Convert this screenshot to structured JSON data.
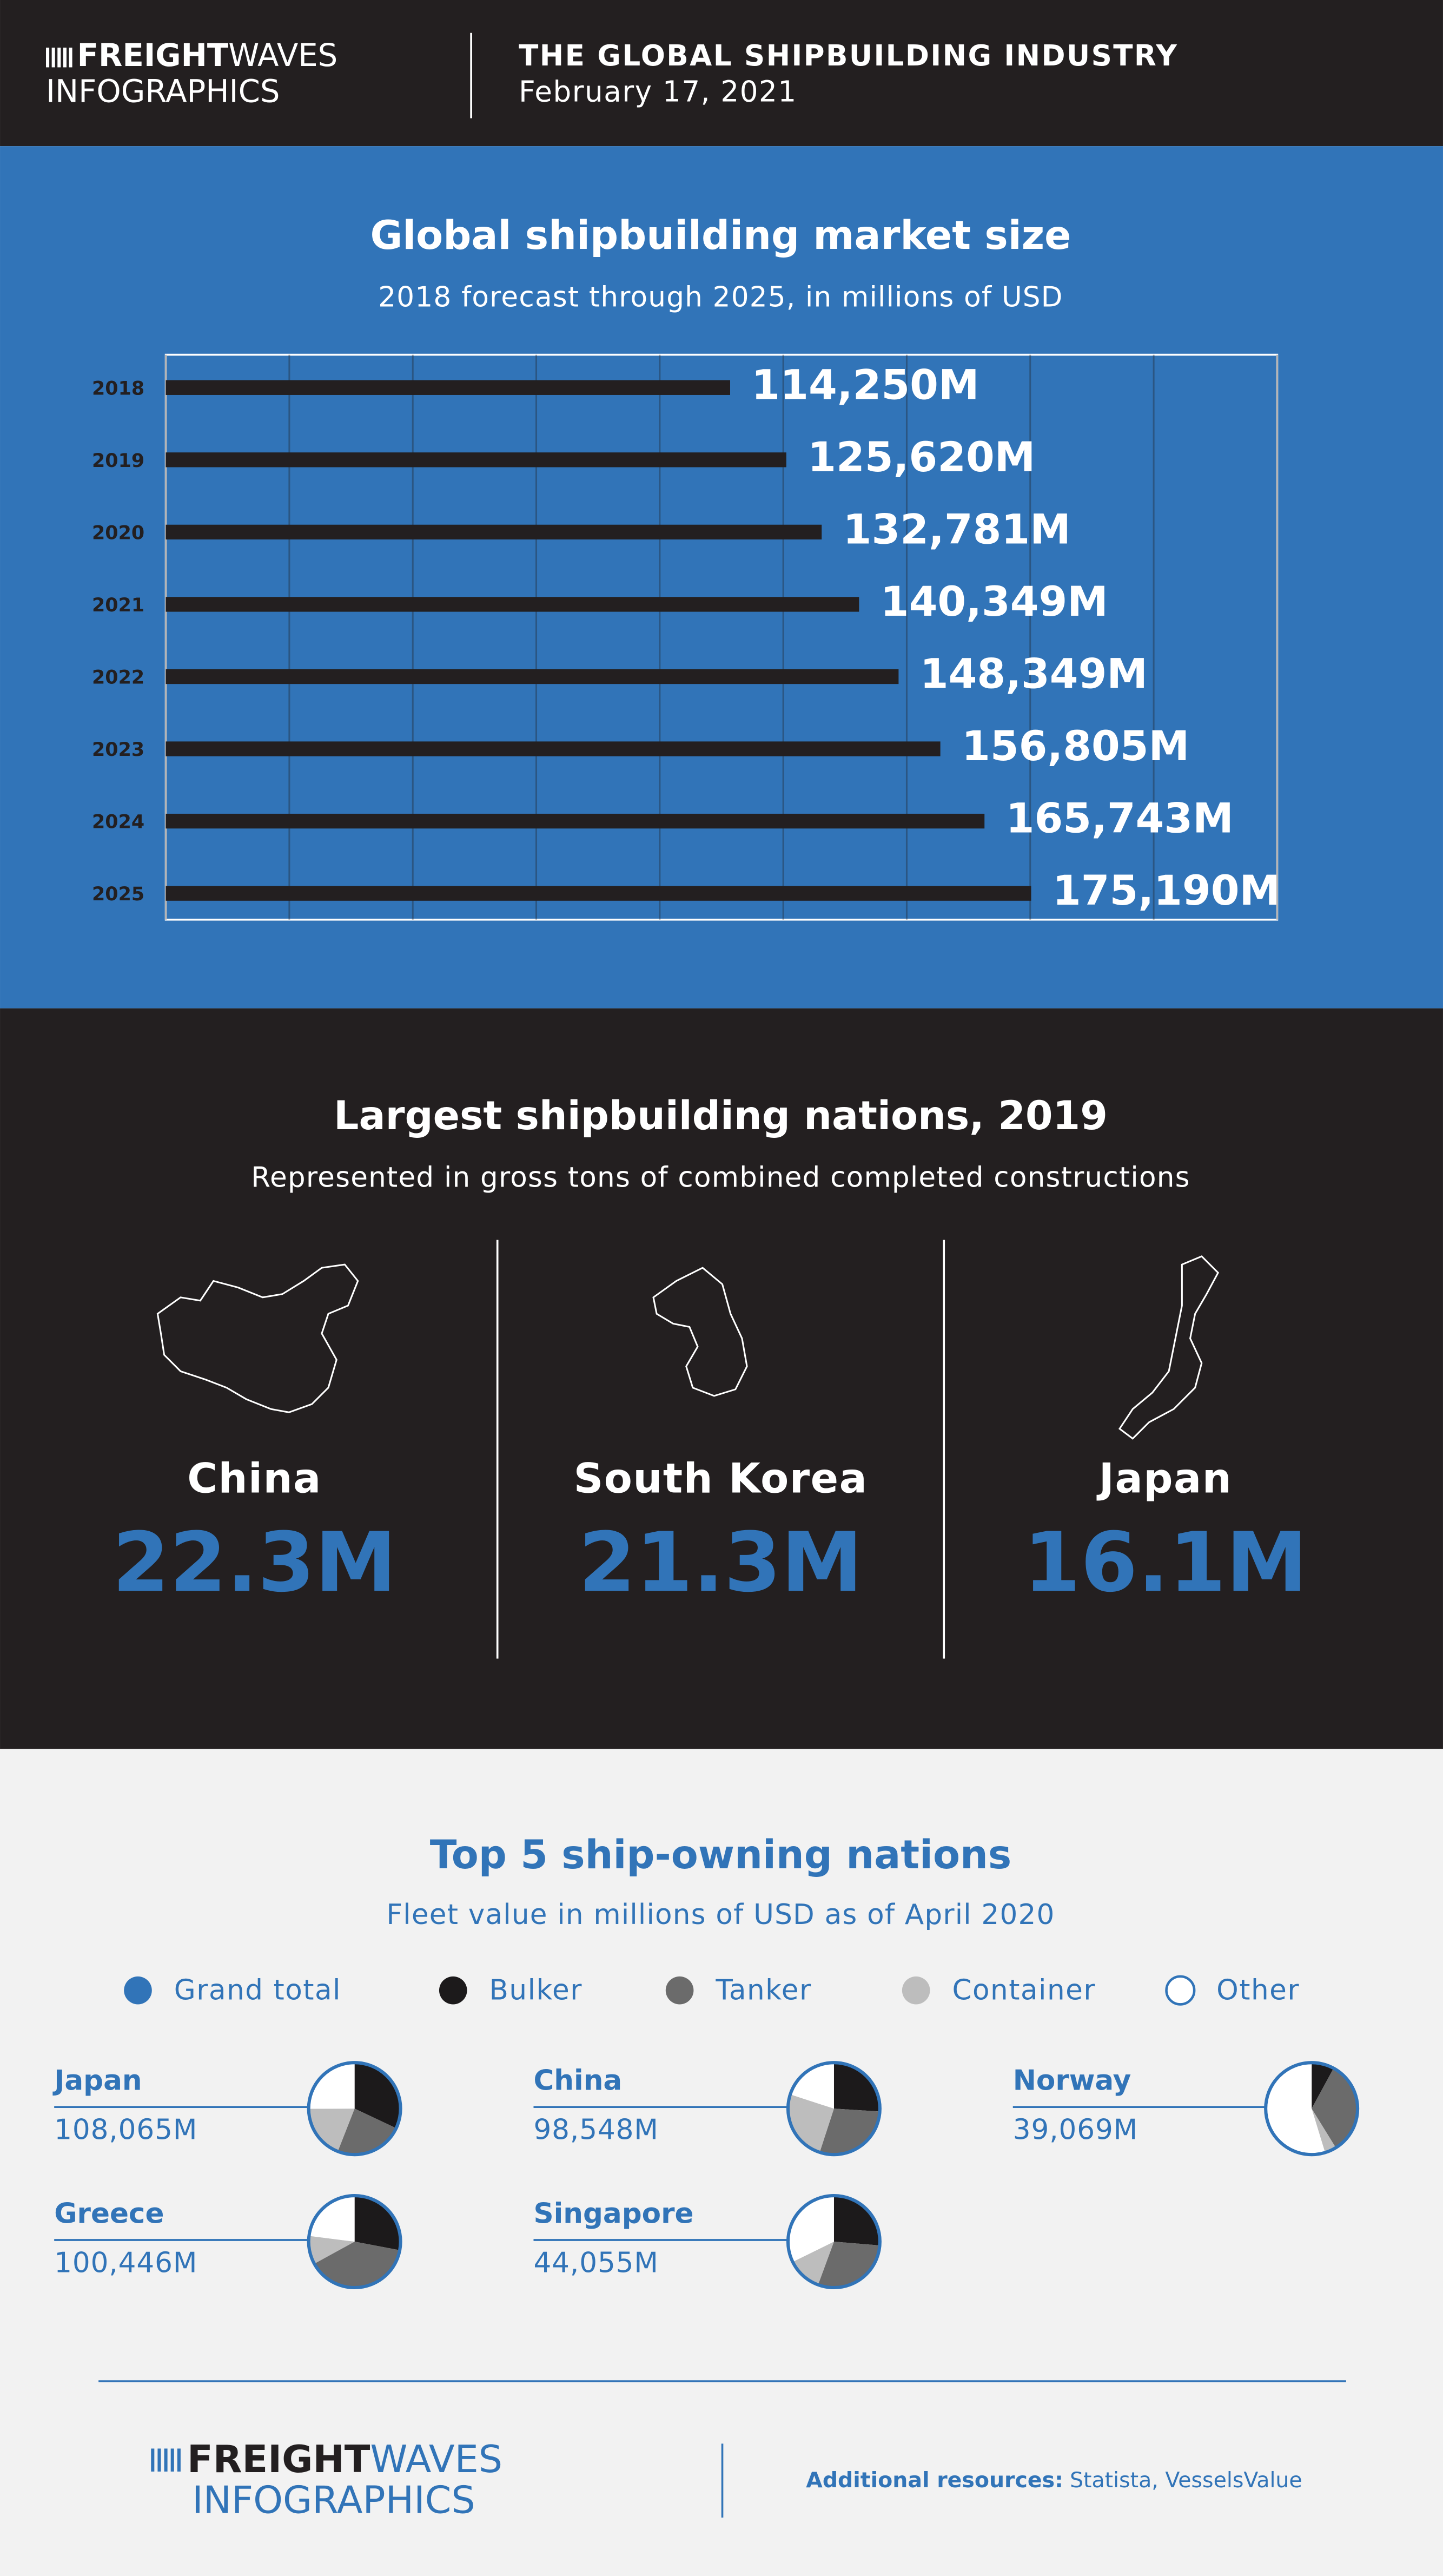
{
  "header": {
    "logo_bold": "FREIGHT",
    "logo_light": "WAVES",
    "logo_sub": "INFOGRAPHICS",
    "title": "THE GLOBAL SHIPBUILDING INDUSTRY",
    "date": "February 17, 2021"
  },
  "chart_data": [
    {
      "type": "bar",
      "horizontal": true,
      "title": "Global shipbuilding market size",
      "subtitle": "2018 forecast through 2025, in millions of USD",
      "categories": [
        "2018",
        "2019",
        "2020",
        "2021",
        "2022",
        "2023",
        "2024",
        "2025"
      ],
      "values": [
        114250,
        125620,
        132781,
        140349,
        148349,
        156805,
        165743,
        175190
      ],
      "value_labels": [
        "114,250M",
        "125,620M",
        "132,781M",
        "140,349M",
        "148,349M",
        "156,805M",
        "165,743M",
        "175,190M"
      ],
      "color": "#231f20",
      "xlim": [
        0,
        225000
      ],
      "xticks": [
        0,
        25000,
        50000,
        75000,
        100000,
        125000,
        150000,
        175000,
        200000,
        225000
      ],
      "grid": true
    },
    {
      "type": "pie",
      "title": "Top 5 ship-owning nations",
      "subtitle": "Fleet value in millions of USD as of April 2020",
      "categories": [
        "Japan",
        "China",
        "Norway",
        "Greece",
        "Singapore"
      ],
      "values": [
        108065,
        98548,
        39069,
        100446,
        44055
      ],
      "value_labels": [
        "108,065M",
        "98,548M",
        "39,069M",
        "100,446M",
        "44,055M"
      ],
      "total_label": "Grand total",
      "total_color": "#3174b8",
      "series": [
        {
          "name": "Bulker",
          "color": "#1c1a1b",
          "values": [
            34600,
            25600,
            3100,
            28100,
            11500
          ]
        },
        {
          "name": "Tanker",
          "color": "#6b6b6b",
          "values": [
            25900,
            28600,
            13000,
            39200,
            12800
          ]
        },
        {
          "name": "Container",
          "color": "#bdbdbd",
          "values": [
            20500,
            24600,
            1600,
            10000,
            5300
          ]
        },
        {
          "name": "Other",
          "color": "#ffffff",
          "values": [
            27100,
            19700,
            21400,
            23100,
            14100
          ]
        }
      ]
    }
  ],
  "nations": {
    "title": "Largest shipbuilding nations, 2019",
    "subtitle": "Represented in gross tons of combined completed constructions",
    "items": [
      {
        "name": "China",
        "value": "22.3M"
      },
      {
        "name": "South Korea",
        "value": "21.3M"
      },
      {
        "name": "Japan",
        "value": "16.1M"
      }
    ]
  },
  "footer": {
    "resources_label": "Additional resources:",
    "resources": "Statista, VesselsValue"
  }
}
